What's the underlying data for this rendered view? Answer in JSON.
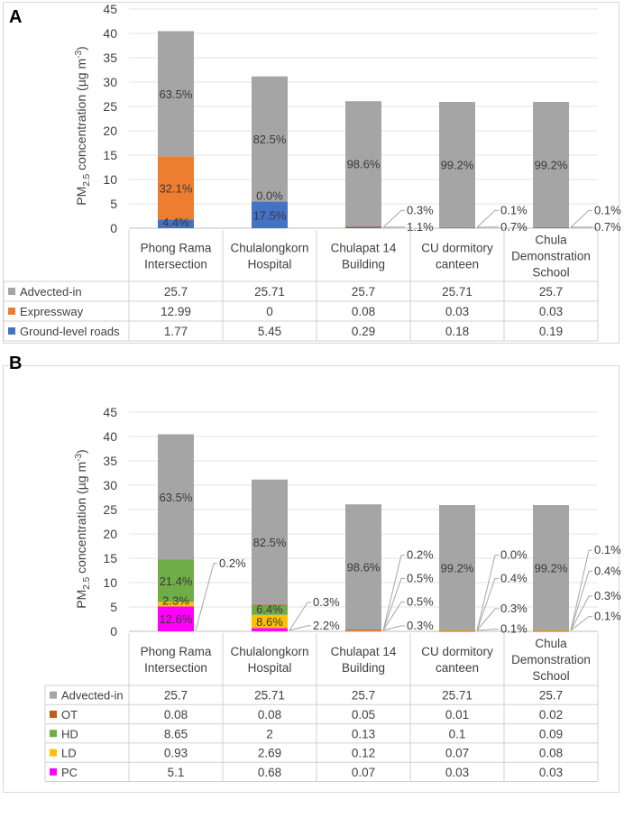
{
  "chart_data": [
    {
      "panel": "A",
      "type": "bar",
      "stacked": true,
      "ylabel_main": "PM",
      "ylabel_sub": "2.5",
      "ylabel_rest": " concentration (µg m",
      "ylabel_sup": "-3",
      "ylabel_end": ")",
      "ylim": [
        0,
        45
      ],
      "yticks": [
        "0",
        "5",
        "10",
        "15",
        "20",
        "25",
        "30",
        "35",
        "40",
        "45"
      ],
      "categories": [
        [
          "Phong Rama",
          "Intersection"
        ],
        [
          "Chulalongkorn",
          "Hospital"
        ],
        [
          "Chulapat 14",
          "Building"
        ],
        [
          "CU dormitory",
          "canteen"
        ],
        [
          "Chula",
          "Demonstration",
          "School"
        ]
      ],
      "series": [
        {
          "name": "Ground-level roads",
          "color": "#4472c4",
          "values": [
            1.77,
            5.45,
            0.29,
            0.18,
            0.19
          ],
          "display": [
            "1.77",
            "5.45",
            "0.29",
            "0.18",
            "0.19"
          ]
        },
        {
          "name": "Expressway",
          "color": "#ed7d31",
          "values": [
            12.99,
            0,
            0.08,
            0.03,
            0.03
          ],
          "display": [
            "12.99",
            "0",
            "0.08",
            "0.03",
            "0.03"
          ]
        },
        {
          "name": "Advected-in",
          "color": "#a5a5a5",
          "values": [
            25.7,
            25.71,
            25.7,
            25.71,
            25.7
          ],
          "display": [
            "25.7",
            "25.71",
            "25.7",
            "25.71",
            "25.7"
          ]
        }
      ],
      "table_order": [
        "Advected-in",
        "Expressway",
        "Ground-level roads"
      ],
      "inner_labels": [
        {
          "cat": 0,
          "series": 2,
          "text": "63.5%"
        },
        {
          "cat": 0,
          "series": 1,
          "text": "32.1%"
        },
        {
          "cat": 0,
          "series": 0,
          "text": "4.4%"
        },
        {
          "cat": 1,
          "series": 2,
          "text": "82.5%"
        },
        {
          "cat": 1,
          "series": 1,
          "text": "0.0%"
        },
        {
          "cat": 1,
          "series": 0,
          "text": "17.5%"
        },
        {
          "cat": 2,
          "series": 2,
          "text": "98.6%"
        },
        {
          "cat": 3,
          "series": 2,
          "text": "99.2%"
        },
        {
          "cat": 4,
          "series": 2,
          "text": "99.2%"
        }
      ],
      "callouts": [
        {
          "cat": 2,
          "text": "0.3%",
          "at": 4
        },
        {
          "cat": 2,
          "text": "1.1%",
          "at": 0.6
        },
        {
          "cat": 3,
          "text": "0.1%",
          "at": 4
        },
        {
          "cat": 3,
          "text": "0.7%",
          "at": 0.6
        },
        {
          "cat": 4,
          "text": "0.1%",
          "at": 4
        },
        {
          "cat": 4,
          "text": "0.7%",
          "at": 0.6
        }
      ]
    },
    {
      "panel": "B",
      "type": "bar",
      "stacked": true,
      "ylabel_main": "PM",
      "ylabel_sub": "2.5",
      "ylabel_rest": " concentration (µg m",
      "ylabel_sup": "-3",
      "ylabel_end": ")",
      "ylim": [
        0,
        45
      ],
      "yticks": [
        "0",
        "5",
        "10",
        "15",
        "20",
        "25",
        "30",
        "35",
        "40",
        "45"
      ],
      "categories": [
        [
          "Phong Rama",
          "Intersection"
        ],
        [
          "Chulalongkorn",
          "Hospital"
        ],
        [
          "Chulapat 14",
          "Building"
        ],
        [
          "CU dormitory",
          "canteen"
        ],
        [
          "Chula",
          "Demonstration",
          "School"
        ]
      ],
      "series": [
        {
          "name": "PC",
          "color": "#ff00ff",
          "values": [
            5.1,
            0.68,
            0.07,
            0.03,
            0.03
          ],
          "display": [
            "5.1",
            "0.68",
            "0.07",
            "0.03",
            "0.03"
          ]
        },
        {
          "name": "LD",
          "color": "#ffc000",
          "values": [
            0.93,
            2.69,
            0.12,
            0.07,
            0.08
          ],
          "display": [
            "0.93",
            "2.69",
            "0.12",
            "0.07",
            "0.08"
          ]
        },
        {
          "name": "HD",
          "color": "#70ad47",
          "values": [
            8.65,
            2,
            0.13,
            0.1,
            0.09
          ],
          "display": [
            "8.65",
            "2",
            "0.13",
            "0.1",
            "0.09"
          ]
        },
        {
          "name": "OT",
          "color": "#c55a11",
          "values": [
            0.08,
            0.08,
            0.05,
            0.01,
            0.02
          ],
          "display": [
            "0.08",
            "0.08",
            "0.05",
            "0.01",
            "0.02"
          ]
        },
        {
          "name": "Advected-in",
          "color": "#a5a5a5",
          "values": [
            25.7,
            25.71,
            25.7,
            25.71,
            25.7
          ],
          "display": [
            "25.7",
            "25.71",
            "25.7",
            "25.71",
            "25.7"
          ]
        }
      ],
      "table_order": [
        "Advected-in",
        "OT",
        "HD",
        "LD",
        "PC"
      ],
      "inner_labels": [
        {
          "cat": 0,
          "series": 4,
          "text": "63.5%"
        },
        {
          "cat": 0,
          "series": 2,
          "text": "21.4%"
        },
        {
          "cat": 0,
          "series": 1,
          "text": "2.3%"
        },
        {
          "cat": 0,
          "series": 0,
          "text": "12.6%"
        },
        {
          "cat": 1,
          "series": 4,
          "text": "82.5%"
        },
        {
          "cat": 1,
          "series": 2,
          "text": "6.4%"
        },
        {
          "cat": 1,
          "series": 1,
          "text": "8.6%"
        },
        {
          "cat": 2,
          "series": 4,
          "text": "98.6%"
        },
        {
          "cat": 3,
          "series": 4,
          "text": "99.2%"
        },
        {
          "cat": 4,
          "series": 4,
          "text": "99.2%"
        }
      ],
      "callouts": [
        {
          "cat": 0,
          "text": "0.2%",
          "at": 14.3
        },
        {
          "cat": 1,
          "text": "0.3%",
          "at": 6.3
        },
        {
          "cat": 1,
          "text": "2.2%",
          "at": 1.5
        },
        {
          "cat": 2,
          "text": "0.2%",
          "at": 16
        },
        {
          "cat": 2,
          "text": "0.5%",
          "at": 11.2
        },
        {
          "cat": 2,
          "text": "0.5%",
          "at": 6.4
        },
        {
          "cat": 2,
          "text": "0.3%",
          "at": 1.5
        },
        {
          "cat": 3,
          "text": "0.0%",
          "at": 16
        },
        {
          "cat": 3,
          "text": "0.4%",
          "at": 11.2
        },
        {
          "cat": 3,
          "text": "0.3%",
          "at": 5
        },
        {
          "cat": 3,
          "text": "0.1%",
          "at": 0.8
        },
        {
          "cat": 4,
          "text": "0.1%",
          "at": 17
        },
        {
          "cat": 4,
          "text": "0.4%",
          "at": 12.7
        },
        {
          "cat": 4,
          "text": "0.3%",
          "at": 7.6
        },
        {
          "cat": 4,
          "text": "0.1%",
          "at": 3.4
        }
      ]
    }
  ]
}
